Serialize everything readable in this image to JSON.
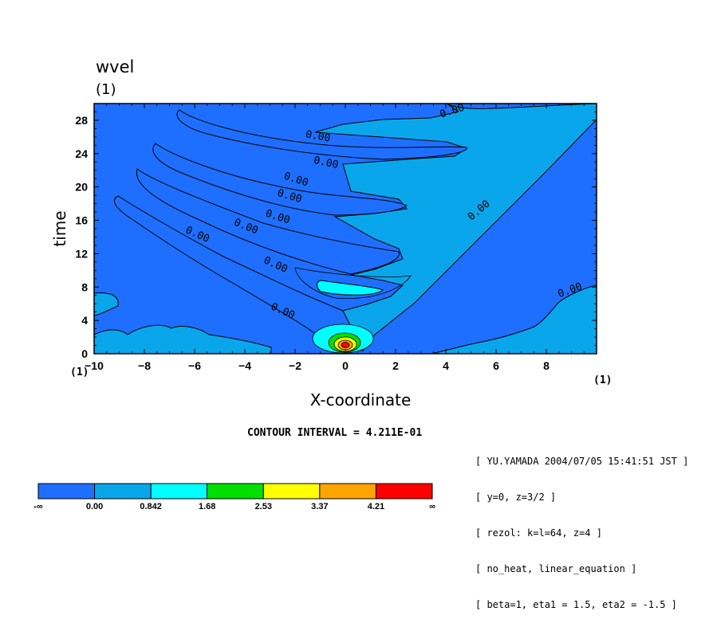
{
  "figure": {
    "title": "wvel",
    "title_unit": "(1)",
    "x_unit_left": "(1)",
    "x_unit_right": "(1)",
    "contour_interval": "CONTOUR INTERVAL = 4.211E-01",
    "info_lines": [
      "[ YU.YAMADA 2004/07/05 15:41:51 JST ]",
      "[ y=0, z=3/2 ]",
      "[ rezol: k=l=64, z=4 ]",
      "[ no_heat, linear_equation ]",
      "[ beta=1, eta1 = 1.5, eta2 = -1.5 ]"
    ]
  },
  "chart_data": {
    "type": "heatmap",
    "title": "wvel",
    "xlabel": "X-coordinate",
    "ylabel": "time",
    "xlim": [
      -10,
      10
    ],
    "ylim": [
      0,
      30
    ],
    "x_ticks": [
      -10,
      -8,
      -6,
      -4,
      -2,
      0,
      2,
      4,
      6,
      8
    ],
    "y_ticks": [
      0,
      4,
      8,
      12,
      16,
      20,
      24,
      28
    ],
    "contour_labels": [
      "0.00",
      "0.00",
      "0.00",
      "0.00",
      "0.00",
      "0.00",
      "0.00",
      "0.00",
      "0.00",
      "0.00",
      "0.00",
      "0.00"
    ],
    "colorbar": {
      "boundaries": [
        "-∞",
        "0.00",
        "0.842",
        "1.68",
        "2.53",
        "3.37",
        "4.21",
        "∞"
      ],
      "colors": [
        "#1e6fff",
        "#0aa6ec",
        "#00ffff",
        "#00e000",
        "#ffff00",
        "#ffa500",
        "#ff0000"
      ]
    }
  }
}
